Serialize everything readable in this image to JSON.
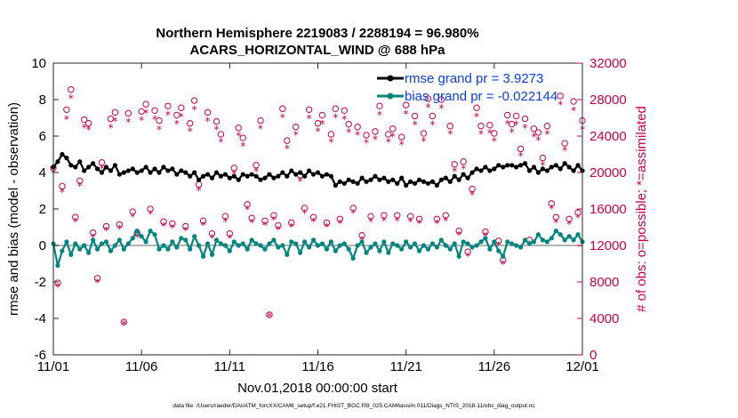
{
  "chart_data": {
    "type": "line",
    "title_line1": "Northern Hemisphere 2219083 / 2288194 = 96.980%",
    "title_line2": "ACARS_HORIZONTAL_WIND @ 688 hPa",
    "xlabel": "Nov.01,2018 00:00:00 start",
    "ylabel_left": "rmse and bias (model - observation)",
    "ylabel_right": "# of obs: o=possible; *=assimilated",
    "xlim": [
      0,
      30
    ],
    "ylim_left": [
      -6,
      10
    ],
    "ylim_right": [
      0,
      32000
    ],
    "x_tick_values": [
      0,
      5,
      10,
      15,
      20,
      25,
      30
    ],
    "x_tick_labels": [
      "11/01",
      "11/06",
      "11/11",
      "11/16",
      "11/21",
      "11/26",
      "12/01"
    ],
    "y_ticks_left": [
      -6,
      -4,
      -2,
      0,
      2,
      4,
      6,
      8,
      10
    ],
    "y_ticks_right": [
      0,
      4000,
      8000,
      12000,
      16000,
      20000,
      24000,
      28000,
      32000
    ],
    "y_tick_labels_left": [
      "-6",
      "-4",
      "-2",
      "0",
      "2",
      "4",
      "6",
      "8",
      "10"
    ],
    "y_tick_labels_right": [
      "0",
      "4000",
      "8000",
      "12000",
      "16000",
      "20000",
      "24000",
      "28000",
      "32000"
    ],
    "legend": {
      "position": "top-right",
      "entries": [
        "rmse grand pr = 3.9273",
        "bias grand pr = -0.022144"
      ]
    },
    "footnote": "data file: /Users/raeder/DAI/ATM_forcXX/CAM6_setup/f.e21.FHIST_BGC.f09_025.CAM6assim.011/Diags_NTrS_2018-11/obs_diag_output.nc",
    "colors": {
      "rmse": "#000000",
      "bias": "#00857f",
      "obs": "#c8004e",
      "zero_line": "#b4b4b4",
      "legend_text": "#0a3ee8"
    },
    "series": [
      {
        "name": "rmse",
        "axis": "left",
        "x": [
          0.0,
          0.25,
          0.5,
          0.75,
          1.0,
          1.25,
          1.5,
          1.75,
          2.0,
          2.25,
          2.5,
          2.75,
          3.0,
          3.25,
          3.5,
          3.75,
          4.0,
          4.25,
          4.5,
          4.75,
          5.0,
          5.25,
          5.5,
          5.75,
          6.0,
          6.25,
          6.5,
          6.75,
          7.0,
          7.25,
          7.5,
          7.75,
          8.0,
          8.25,
          8.5,
          8.75,
          9.0,
          9.25,
          9.5,
          9.75,
          10.0,
          10.25,
          10.5,
          10.75,
          11.0,
          11.25,
          11.5,
          11.75,
          12.0,
          12.25,
          12.5,
          12.75,
          13.0,
          13.25,
          13.5,
          13.75,
          14.0,
          14.25,
          14.5,
          14.75,
          15.0,
          15.25,
          15.5,
          15.75,
          16.0,
          16.25,
          16.5,
          16.75,
          17.0,
          17.25,
          17.5,
          17.75,
          18.0,
          18.25,
          18.5,
          18.75,
          19.0,
          19.25,
          19.5,
          19.75,
          20.0,
          20.25,
          20.5,
          20.75,
          21.0,
          21.25,
          21.5,
          21.75,
          22.0,
          22.25,
          22.5,
          22.75,
          23.0,
          23.25,
          23.5,
          23.75,
          24.0,
          24.25,
          24.5,
          24.75,
          25.0,
          25.25,
          25.5,
          25.75,
          26.0,
          26.25,
          26.5,
          26.75,
          27.0,
          27.25,
          27.5,
          27.75,
          28.0,
          28.25,
          28.5,
          28.75,
          29.0,
          29.25,
          29.5,
          29.75,
          30.0
        ],
        "values": [
          4.3,
          4.6,
          5.0,
          4.8,
          4.4,
          4.3,
          4.6,
          4.1,
          4.3,
          4.5,
          4.2,
          4.0,
          4.3,
          4.1,
          4.4,
          3.9,
          4.0,
          4.1,
          4.2,
          4.0,
          4.1,
          4.3,
          4.0,
          4.2,
          4.0,
          4.3,
          4.1,
          4.2,
          3.9,
          4.1,
          4.0,
          3.8,
          4.0,
          3.6,
          3.8,
          3.9,
          3.7,
          4.0,
          3.8,
          3.9,
          3.7,
          3.8,
          3.6,
          3.9,
          3.8,
          3.9,
          3.8,
          3.6,
          3.7,
          3.9,
          3.7,
          3.8,
          4.0,
          3.8,
          4.1,
          3.9,
          4.0,
          3.8,
          4.1,
          3.9,
          4.0,
          3.8,
          3.9,
          3.8,
          3.3,
          3.5,
          3.4,
          3.6,
          3.5,
          3.4,
          3.7,
          3.5,
          3.6,
          3.8,
          3.6,
          3.7,
          3.5,
          3.6,
          3.4,
          3.7,
          3.3,
          3.5,
          3.4,
          3.6,
          3.5,
          3.4,
          3.5,
          3.3,
          3.6,
          3.7,
          3.5,
          3.8,
          3.6,
          3.9,
          3.7,
          4.0,
          4.2,
          4.1,
          4.3,
          4.1,
          4.2,
          4.4,
          4.3,
          4.4,
          4.4,
          4.3,
          4.4,
          4.5,
          4.1,
          4.3,
          4.0,
          4.2,
          4.1,
          4.3,
          4.4,
          4.2,
          4.5,
          4.3,
          4.1,
          4.4,
          4.1
        ]
      },
      {
        "name": "bias",
        "axis": "left",
        "x": [
          0.0,
          0.25,
          0.5,
          0.75,
          1.0,
          1.25,
          1.5,
          1.75,
          2.0,
          2.25,
          2.5,
          2.75,
          3.0,
          3.25,
          3.5,
          3.75,
          4.0,
          4.25,
          4.5,
          4.75,
          5.0,
          5.25,
          5.5,
          5.75,
          6.0,
          6.25,
          6.5,
          6.75,
          7.0,
          7.25,
          7.5,
          7.75,
          8.0,
          8.25,
          8.5,
          8.75,
          9.0,
          9.25,
          9.5,
          9.75,
          10.0,
          10.25,
          10.5,
          10.75,
          11.0,
          11.25,
          11.5,
          11.75,
          12.0,
          12.25,
          12.5,
          12.75,
          13.0,
          13.25,
          13.5,
          13.75,
          14.0,
          14.25,
          14.5,
          14.75,
          15.0,
          15.25,
          15.5,
          15.75,
          16.0,
          16.25,
          16.5,
          16.75,
          17.0,
          17.25,
          17.5,
          17.75,
          18.0,
          18.25,
          18.5,
          18.75,
          19.0,
          19.25,
          19.5,
          19.75,
          20.0,
          20.25,
          20.5,
          20.75,
          21.0,
          21.25,
          21.5,
          21.75,
          22.0,
          22.25,
          22.5,
          22.75,
          23.0,
          23.25,
          23.5,
          23.75,
          24.0,
          24.25,
          24.5,
          24.75,
          25.0,
          25.25,
          25.5,
          25.75,
          26.0,
          26.25,
          26.5,
          26.75,
          27.0,
          27.25,
          27.5,
          27.75,
          28.0,
          28.25,
          28.5,
          28.75,
          29.0,
          29.25,
          29.5,
          29.75,
          30.0
        ],
        "values": [
          0.1,
          -1.1,
          -0.3,
          0.2,
          -0.5,
          0.1,
          -0.2,
          0.0,
          -0.4,
          0.3,
          -0.2,
          0.1,
          0.2,
          -0.3,
          0.0,
          0.3,
          -0.2,
          0.1,
          0.4,
          0.8,
          0.5,
          0.2,
          0.8,
          0.6,
          -0.2,
          0.0,
          -0.2,
          0.2,
          -0.1,
          0.4,
          0.3,
          -0.2,
          0.5,
          0.0,
          -0.6,
          0.1,
          -0.5,
          0.3,
          0.1,
          0.0,
          -0.3,
          0.2,
          0.0,
          0.1,
          -0.2,
          0.3,
          0.1,
          0.0,
          -0.2,
          0.1,
          0.3,
          -0.1,
          0.0,
          -0.5,
          0.2,
          0.1,
          -0.4,
          0.2,
          -0.1,
          0.3,
          0.0,
          0.1,
          -0.2,
          0.2,
          -0.3,
          0.0,
          0.1,
          -0.2,
          -0.7,
          0.0,
          0.2,
          -0.4,
          -0.1,
          0.1,
          -0.3,
          0.2,
          -0.4,
          0.1,
          0.0,
          -0.2,
          0.2,
          -0.1,
          0.1,
          -0.3,
          0.0,
          -0.2,
          0.1,
          -0.1,
          0.3,
          0.0,
          -0.2,
          0.1,
          -0.6,
          0.2,
          0.1,
          -0.1,
          0.0,
          0.2,
          0.4,
          -0.2,
          0.2,
          -0.3,
          -0.6,
          0.2,
          0.1,
          0.0,
          -0.1,
          0.3,
          0.1,
          0.2,
          0.6,
          0.3,
          0.2,
          0.4,
          0.8,
          0.6,
          0.3,
          0.5,
          0.3,
          0.6,
          0.2
        ]
      },
      {
        "name": "possible",
        "axis": "right",
        "marker": "o",
        "x": [
          0.0,
          0.25,
          0.5,
          0.75,
          1.0,
          1.25,
          1.5,
          1.75,
          2.0,
          2.25,
          2.5,
          2.75,
          3.0,
          3.25,
          3.5,
          3.75,
          4.0,
          4.25,
          4.5,
          4.75,
          5.0,
          5.25,
          5.5,
          5.75,
          6.0,
          6.25,
          6.5,
          6.75,
          7.0,
          7.25,
          7.5,
          7.75,
          8.0,
          8.25,
          8.5,
          8.75,
          9.0,
          9.25,
          9.5,
          9.75,
          10.0,
          10.25,
          10.5,
          10.75,
          11.0,
          11.25,
          11.5,
          11.75,
          12.0,
          12.25,
          12.5,
          12.75,
          13.0,
          13.25,
          13.5,
          13.75,
          14.0,
          14.25,
          14.5,
          14.75,
          15.0,
          15.25,
          15.5,
          15.75,
          16.0,
          16.25,
          16.5,
          16.75,
          17.0,
          17.25,
          17.5,
          17.75,
          18.0,
          18.25,
          18.5,
          18.75,
          19.0,
          19.25,
          19.5,
          19.75,
          20.0,
          20.25,
          20.5,
          20.75,
          21.0,
          21.25,
          21.5,
          21.75,
          22.0,
          22.25,
          22.5,
          22.75,
          23.0,
          23.25,
          23.5,
          23.75,
          24.0,
          24.25,
          24.5,
          24.75,
          25.0,
          25.25,
          25.5,
          25.75,
          26.0,
          26.25,
          26.5,
          26.75,
          27.0,
          27.25,
          27.5,
          27.75,
          28.0,
          28.25,
          28.5,
          28.75,
          29.0,
          29.25,
          29.5,
          29.75,
          30.0
        ],
        "values": [
          20500,
          7900,
          18500,
          26900,
          29100,
          15100,
          19100,
          25800,
          25400,
          13400,
          8400,
          21100,
          14100,
          25900,
          26600,
          14300,
          3600,
          26500,
          15700,
          13400,
          26700,
          27500,
          16000,
          26800,
          25700,
          14600,
          27300,
          14400,
          26300,
          27100,
          14100,
          25400,
          27900,
          18700,
          14700,
          26600,
          13300,
          25600,
          24200,
          15200,
          13300,
          20500,
          24900,
          23800,
          16500,
          15000,
          20800,
          25700,
          14700,
          4400,
          15300,
          14200,
          27000,
          23500,
          14500,
          25000,
          19700,
          16100,
          26900,
          15100,
          25400,
          26300,
          14500,
          24200,
          27000,
          14900,
          26800,
          25300,
          16100,
          25000,
          13100,
          24100,
          15200,
          24500,
          27300,
          15300,
          24200,
          24800,
          15300,
          23900,
          27400,
          15200,
          26200,
          14900,
          24300,
          28100,
          26200,
          14900,
          28000,
          15300,
          25100,
          20900,
          13600,
          21200,
          11300,
          18200,
          27100,
          25100,
          13500,
          25200,
          24300,
          12500,
          10400,
          26300,
          25300,
          26200,
          22600,
          25900,
          12600,
          24800,
          24400,
          21600,
          25100,
          16600,
          15100,
          28400,
          23200,
          14900,
          27800,
          15600,
          25700
        ]
      },
      {
        "name": "assimilated",
        "axis": "right",
        "marker": "*",
        "x": [
          0.0,
          0.25,
          0.5,
          0.75,
          1.0,
          1.25,
          1.5,
          1.75,
          2.0,
          2.25,
          2.5,
          2.75,
          3.0,
          3.25,
          3.5,
          3.75,
          4.0,
          4.25,
          4.5,
          4.75,
          5.0,
          5.25,
          5.5,
          5.75,
          6.0,
          6.25,
          6.5,
          6.75,
          7.0,
          7.25,
          7.5,
          7.75,
          8.0,
          8.25,
          8.5,
          8.75,
          9.0,
          9.25,
          9.5,
          9.75,
          10.0,
          10.25,
          10.5,
          10.75,
          11.0,
          11.25,
          11.5,
          11.75,
          12.0,
          12.25,
          12.5,
          12.75,
          13.0,
          13.25,
          13.5,
          13.75,
          14.0,
          14.25,
          14.5,
          14.75,
          15.0,
          15.25,
          15.5,
          15.75,
          16.0,
          16.25,
          16.5,
          16.75,
          17.0,
          17.25,
          17.5,
          17.75,
          18.0,
          18.25,
          18.5,
          18.75,
          19.0,
          19.25,
          19.5,
          19.75,
          20.0,
          20.25,
          20.5,
          20.75,
          21.0,
          21.25,
          21.5,
          21.75,
          22.0,
          22.25,
          22.5,
          22.75,
          23.0,
          23.25,
          23.5,
          23.75,
          24.0,
          24.25,
          24.5,
          24.75,
          25.0,
          25.25,
          25.5,
          25.75,
          26.0,
          26.25,
          26.5,
          26.75,
          27.0,
          27.25,
          27.5,
          27.75,
          28.0,
          28.25,
          28.5,
          28.75,
          29.0,
          29.25,
          29.5,
          29.75,
          30.0
        ],
        "values": [
          20000,
          7500,
          17900,
          25900,
          28200,
          14700,
          18600,
          25000,
          24800,
          13000,
          8000,
          20500,
          13700,
          25000,
          25700,
          13900,
          3400,
          25600,
          15200,
          13000,
          25800,
          26600,
          15500,
          25900,
          24800,
          14200,
          26400,
          14000,
          25400,
          26200,
          13700,
          24600,
          27000,
          18100,
          14300,
          25700,
          12900,
          24800,
          23400,
          14700,
          12900,
          19900,
          24100,
          23000,
          16000,
          14600,
          20200,
          24900,
          14300,
          4300,
          14900,
          13800,
          26100,
          22700,
          14100,
          24200,
          19100,
          15600,
          26000,
          14700,
          24600,
          25400,
          14100,
          23400,
          26100,
          14500,
          25900,
          24500,
          15600,
          24200,
          12700,
          23300,
          14700,
          23700,
          26400,
          14800,
          23400,
          24000,
          14800,
          23100,
          26500,
          14700,
          25300,
          14500,
          23500,
          27200,
          25300,
          14500,
          27100,
          14800,
          24300,
          20200,
          13200,
          20500,
          10900,
          17600,
          26200,
          24300,
          13100,
          24400,
          23500,
          12100,
          10000,
          25400,
          24500,
          25300,
          21900,
          25000,
          12200,
          24000,
          23600,
          20900,
          24300,
          16100,
          14600,
          27500,
          22500,
          14400,
          26900,
          15100,
          24800
        ]
      }
    ]
  }
}
